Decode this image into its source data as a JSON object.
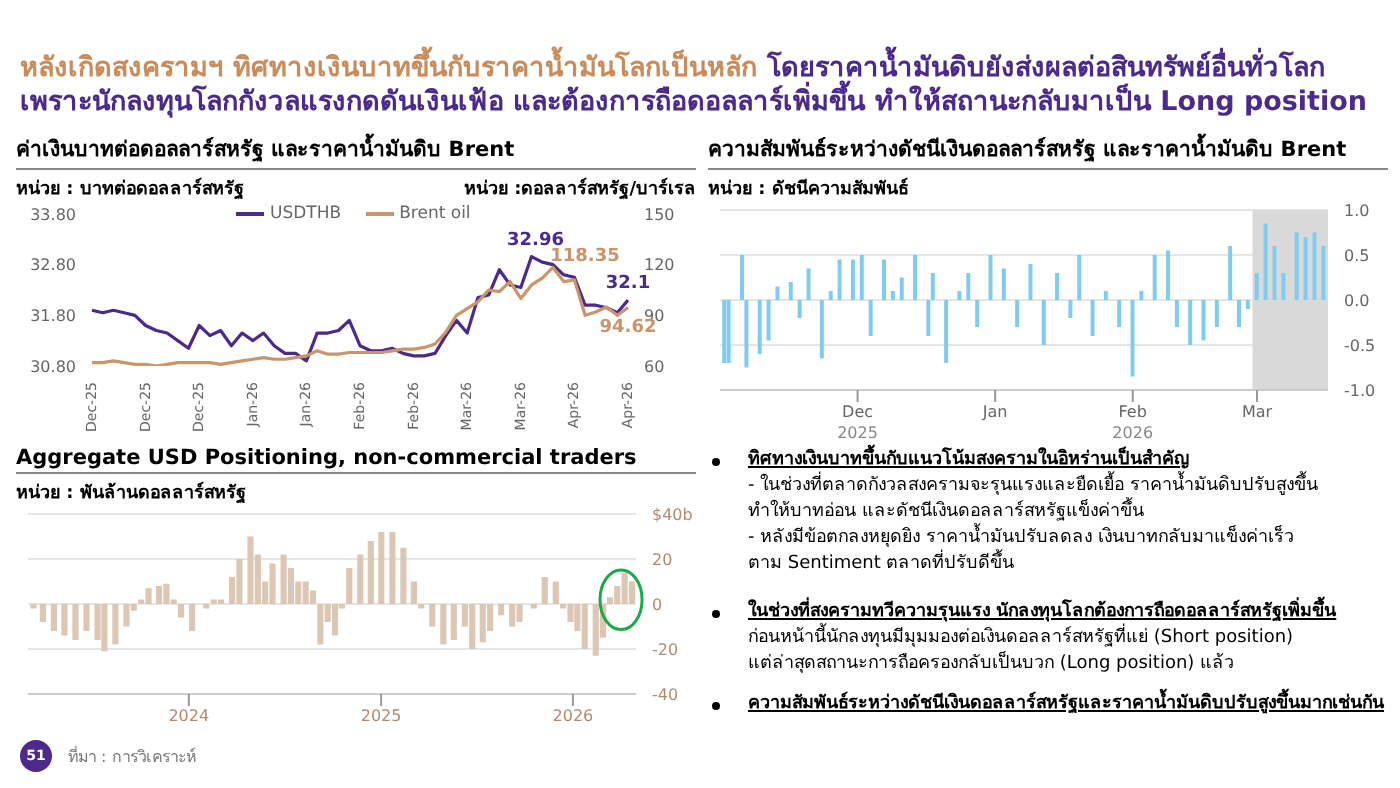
{
  "chart_data": [
    {
      "type": "other",
      "title": "หลังเกิดสงครามฯ ทิศทางเงินบาทขึ้นกับราคาน้ำมันโลกเป็นหลัก",
      "subtitle": "โดยราคาน้ำมันดิบยังส่งผลต่อสินทรัพย์อื่นทั่วโลก เพราะนักลงทุนโลกกังวลแรงกดดันเงินเฟ้อ และต้องการถือดอลลาร์เพิ่มขึ้น ทำให้สถานะกลับมาเป็น Long position",
      "annotations": [
        "51",
        "ที่มา : การวิเคราะห์"
      ]
    },
    {
      "type": "line",
      "title": "ค่าเงินบาทต่อดอลลาร์สหรัฐ และราคาน้ำมันดิบ Brent",
      "ylabel": "หน่วย : บาทต่อดอลลาร์สหรัฐ",
      "y2label": "หน่วย :ดอลลาร์สหรัฐ/บาร์เรล",
      "legend": "top",
      "categories": [
        "Dec-25",
        null,
        null,
        null,
        null,
        "Dec-25",
        null,
        null,
        null,
        null,
        "Dec-25",
        null,
        null,
        null,
        null,
        "Jan-26",
        null,
        null,
        null,
        null,
        "Jan-26",
        null,
        null,
        null,
        null,
        "Feb-26",
        null,
        null,
        null,
        null,
        "Feb-26",
        null,
        null,
        null,
        null,
        "Mar-26",
        null,
        null,
        null,
        null,
        "Mar-26",
        null,
        null,
        null,
        null,
        "Apr-26",
        null,
        null,
        null,
        null,
        "Apr-26"
      ],
      "ylim": [
        30.8,
        33.8
      ],
      "yticks": [
        {
          "value": 30.8,
          "label": "30.80"
        },
        {
          "value": 31.8,
          "label": "31.80"
        },
        {
          "value": 32.8,
          "label": "32.80"
        },
        {
          "value": 33.8,
          "label": "33.80"
        }
      ],
      "y2lim": [
        60,
        150
      ],
      "y2ticks": [
        60,
        90,
        120,
        150
      ],
      "series": [
        {
          "name": "USDTHB",
          "color": "#4b2a8c",
          "values": [
            31.9,
            31.85,
            31.9,
            31.85,
            31.8,
            31.6,
            31.5,
            31.45,
            31.3,
            31.15,
            31.6,
            31.4,
            31.5,
            31.2,
            31.45,
            31.3,
            31.45,
            31.2,
            31.05,
            31.05,
            30.9,
            31.45,
            31.45,
            31.5,
            31.7,
            31.2,
            31.1,
            31.1,
            31.15,
            31.05,
            31.0,
            31.0,
            31.05,
            31.4,
            31.7,
            31.45,
            32.15,
            32.2,
            32.7,
            32.4,
            32.35,
            32.96,
            32.85,
            32.8,
            32.6,
            32.55,
            32.0,
            32.0,
            31.95,
            31.85,
            32.1
          ],
          "value_labels": [
            null,
            null,
            null,
            null,
            null,
            null,
            null,
            null,
            null,
            null,
            null,
            null,
            null,
            null,
            null,
            null,
            null,
            null,
            null,
            null,
            null,
            null,
            null,
            null,
            null,
            null,
            null,
            null,
            null,
            null,
            null,
            null,
            null,
            null,
            null,
            null,
            null,
            null,
            null,
            null,
            null,
            "32.96",
            null,
            null,
            null,
            null,
            null,
            null,
            null,
            null,
            "32.1"
          ]
        },
        {
          "name": "Brent oil",
          "color": "#c9956a",
          "axis": "y2",
          "values": [
            62,
            62,
            63,
            62,
            61,
            61,
            60,
            61,
            62,
            62,
            62,
            62,
            61,
            62,
            63,
            64,
            65,
            64,
            64,
            65,
            66,
            69,
            67,
            67,
            68,
            68,
            68,
            68,
            69,
            70,
            70,
            71,
            73,
            80,
            90,
            94,
            98,
            105,
            104,
            110,
            100,
            108,
            112,
            118.35,
            110,
            111,
            90,
            92,
            95,
            90,
            94.62
          ],
          "value_labels": [
            null,
            null,
            null,
            null,
            null,
            null,
            null,
            null,
            null,
            null,
            null,
            null,
            null,
            null,
            null,
            null,
            null,
            null,
            null,
            null,
            null,
            null,
            null,
            null,
            null,
            null,
            null,
            null,
            null,
            null,
            null,
            null,
            null,
            null,
            null,
            null,
            null,
            null,
            null,
            null,
            null,
            null,
            null,
            "118.35",
            null,
            null,
            null,
            null,
            null,
            null,
            "94.62"
          ]
        }
      ]
    },
    {
      "type": "bar",
      "title": "ความสัมพันธ์ระหว่างดัชนีเงินดอลลาร์สหรัฐ และราคาน้ำมันดิบ Brent",
      "ylabel": "หน่วย : ดัชนีความสัมพันธ์",
      "grid": "y",
      "color": "#7fcdee",
      "x": [
        "2025-11-01",
        "2025-11-02",
        "2025-11-05",
        "2025-11-06",
        "2025-11-09",
        "2025-11-11",
        "2025-11-13",
        "2025-11-16",
        "2025-11-18",
        "2025-11-20",
        "2025-11-23",
        "2025-11-25",
        "2025-11-27",
        "2025-11-30",
        "2025-12-02",
        "2025-12-04",
        "2025-12-07",
        "2025-12-09",
        "2025-12-11",
        "2025-12-14",
        "2025-12-17",
        "2025-12-18",
        "2025-12-21",
        "2025-12-24",
        "2025-12-26",
        "2025-12-28",
        "2025-12-31",
        "2026-01-03",
        "2026-01-06",
        "2026-01-09",
        "2026-01-12",
        "2026-01-15",
        "2026-01-18",
        "2026-01-20",
        "2026-01-23",
        "2026-01-26",
        "2026-01-29",
        "2026-02-01",
        "2026-02-03",
        "2026-02-06",
        "2026-02-09",
        "2026-02-11",
        "2026-02-14",
        "2026-02-17",
        "2026-02-20",
        "2026-02-23",
        "2026-02-25",
        "2026-02-27",
        "2026-03-01",
        "2026-03-03",
        "2026-03-05",
        "2026-03-07",
        "2026-03-10",
        "2026-03-12",
        "2026-03-14",
        "2026-03-16"
      ],
      "values": [
        -0.7,
        -0.7,
        0.5,
        -0.75,
        -0.6,
        -0.45,
        0.15,
        0.2,
        -0.2,
        0.35,
        -0.65,
        0.1,
        0.45,
        0.45,
        0.5,
        -0.4,
        0.45,
        0.1,
        0.25,
        0.5,
        -0.4,
        0.3,
        -0.7,
        0.1,
        0.3,
        -0.3,
        0.5,
        0.35,
        -0.3,
        0.4,
        -0.5,
        0.3,
        -0.2,
        0.5,
        -0.4,
        0.1,
        -0.3,
        -0.85,
        0.1,
        0.5,
        0.55,
        -0.3,
        -0.5,
        -0.45,
        -0.3,
        0.6,
        -0.3,
        -0.1,
        0.3,
        0.85,
        0.6,
        0.3,
        0.75,
        0.7,
        0.75,
        0.6
      ],
      "xlim": [
        "2025-10-31",
        "2026-03-17"
      ],
      "xticks": [
        {
          "value": "2025-12-01",
          "label": "Dec"
        },
        {
          "value": "2026-01-01",
          "label": "Jan"
        },
        {
          "value": "2026-02-01",
          "label": "Feb"
        },
        {
          "value": "2026-03-01",
          "label": "Mar"
        }
      ],
      "ylim": [
        -1,
        1
      ],
      "yticks": [
        {
          "value": -1,
          "label": "-1.0"
        },
        {
          "value": -0.5,
          "label": "-0.5"
        },
        {
          "value": 0,
          "label": "0.0"
        },
        {
          "value": 0.5,
          "label": "0.5"
        },
        {
          "value": 1,
          "label": "1.0"
        }
      ],
      "bands": [
        {
          "axis": "x",
          "from": "2026-02-28",
          "to": "2026-03-17",
          "color": "#d9d9d9"
        }
      ],
      "annotations": [
        "2025",
        "2026"
      ]
    },
    {
      "type": "bar",
      "title": "Aggregate USD Positioning, non-commercial traders",
      "ylabel": "หน่วย : พันล้านดอลลาร์สหรัฐ",
      "grid": "y",
      "color": "#dcc7b4",
      "x": [
        "2023-03-12",
        "2023-03-30",
        "2023-04-20",
        "2023-05-10",
        "2023-05-31",
        "2023-06-21",
        "2023-07-12",
        "2023-07-25",
        "2023-08-15",
        "2023-09-05",
        "2023-09-19",
        "2023-10-03",
        "2023-10-17",
        "2023-11-06",
        "2023-11-20",
        "2023-12-04",
        "2023-12-18",
        "2024-01-08",
        "2024-02-04",
        "2024-02-18",
        "2024-03-03",
        "2024-03-24",
        "2024-04-07",
        "2024-04-28",
        "2024-05-12",
        "2024-05-26",
        "2024-06-09",
        "2024-06-30",
        "2024-07-14",
        "2024-07-28",
        "2024-08-11",
        "2024-08-25",
        "2024-09-08",
        "2024-09-22",
        "2024-10-06",
        "2024-10-19",
        "2024-11-02",
        "2024-11-23",
        "2024-12-13",
        "2025-01-02",
        "2025-01-23",
        "2025-02-13",
        "2025-03-05",
        "2025-03-19",
        "2025-04-09",
        "2025-04-30",
        "2025-05-20",
        "2025-06-10",
        "2025-06-24",
        "2025-07-14",
        "2025-07-28",
        "2025-08-18",
        "2025-09-08",
        "2025-09-22",
        "2025-10-19",
        "2025-11-09",
        "2025-11-30",
        "2025-12-14",
        "2025-12-28",
        "2026-01-10",
        "2026-01-24",
        "2026-02-14",
        "2026-02-28",
        "2026-03-13",
        "2026-03-27",
        "2026-04-10",
        "2026-04-24"
      ],
      "values": [
        -2,
        -8,
        -12,
        -14,
        -16,
        -12,
        -16,
        -21,
        -18,
        -10,
        -3,
        2,
        7,
        8,
        9,
        2,
        -6,
        -12,
        -2,
        2,
        2,
        12,
        20,
        30,
        22,
        10,
        18,
        22,
        16,
        10,
        10,
        6,
        -18,
        -8,
        -14,
        -2,
        16,
        22,
        28,
        32,
        32,
        25,
        10,
        -2,
        -10,
        -18,
        -16,
        -10,
        -20,
        -17,
        -12,
        -5,
        -10,
        -8,
        -2,
        12,
        10,
        -2,
        -8,
        -12,
        -20,
        -23,
        -15,
        3,
        8,
        14,
        10
      ],
      "xlim": [
        "2023-03-01",
        "2026-05-01"
      ],
      "xticks": [
        {
          "value": "2024-01-01",
          "label": "2024"
        },
        {
          "value": "2025-01-01",
          "label": "2025"
        },
        {
          "value": "2026-01-01",
          "label": "2026"
        }
      ],
      "ylim": [
        -40,
        40
      ],
      "yticks": [
        -40,
        -20,
        0,
        20,
        {
          "value": 40,
          "label": "$40b"
        }
      ]
    },
    {
      "type": "other",
      "title": "ทิศทางเงินบาทขึ้นกับแนวโน้มสงครามในอิหร่านเป็นสำคัญ",
      "annotations": [
        "- ในช่วงที่ตลาดกังวลสงครามจะรุนแรงและยืดเยื้อ ราคาน้ำมันดิบปรับสูงขึ้น",
        "ทำให้บาทอ่อน และดัชนีเงินดอลลาร์สหรัฐแข็งค่าขึ้น",
        "- หลังมีข้อตกลงหยุดยิง ราคาน้ำมันปรับลดลง เงินบาทกลับมาแข็งค่าเร็ว",
        "ตาม Sentiment ตลาดที่ปรับดีขึ้น"
      ]
    },
    {
      "type": "other",
      "title": "ในช่วงที่สงครามทวีความรุนแรง นักลงทุนโลกต้องการถือดอลลาร์สหรัฐเพิ่มขึ้น",
      "annotations": [
        "ก่อนหน้านี้นักลงทุนมีมุมมองต่อเงินดอลลาร์สหรัฐที่แย่ (Short position)",
        "แต่ล่าสุดสถานะการถือครองกลับเป็นบวก (Long position) แล้ว"
      ]
    },
    {
      "type": "other",
      "title": "ความสัมพันธ์ระหว่างดัชนีเงินดอลลาร์สหรัฐและราคาน้ำมันดิบปรับสูงขึ้นมากเช่นกัน"
    }
  ]
}
